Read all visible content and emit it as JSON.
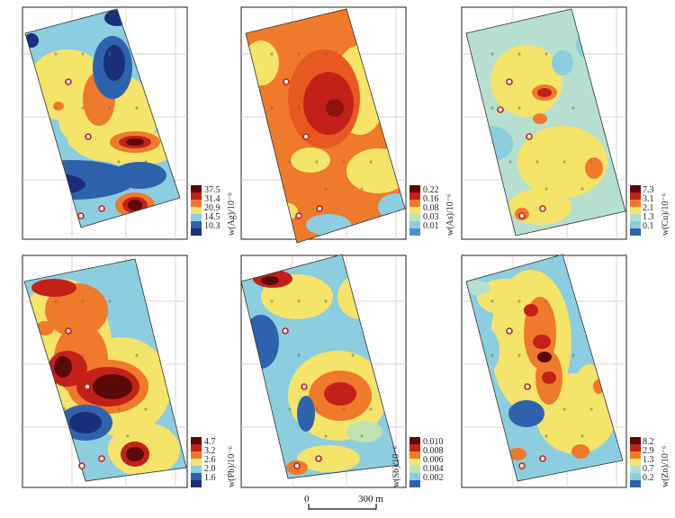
{
  "figure": {
    "panels": [
      {
        "id": "ag",
        "legend_title": "w(Ag)/10⁻⁹",
        "levels": [
          "37.5",
          "31.4",
          "20.9",
          "14.5",
          "10.3"
        ],
        "colors": [
          "#5b0a0a",
          "#c4201a",
          "#ef7a2b",
          "#f4e46a",
          "#8ccde0",
          "#2f62ad",
          "#1a2f7a"
        ]
      },
      {
        "id": "as",
        "legend_title": "w(As)/10⁻⁶",
        "levels": [
          "0.22",
          "0.16",
          "0.08",
          "0.03",
          "0.01"
        ],
        "colors": [
          "#5b0a0a",
          "#c4201a",
          "#ef7a2b",
          "#f4e46a",
          "#bfe3b0",
          "#8ccde0",
          "#4b8ed0"
        ]
      },
      {
        "id": "cu",
        "legend_title": "w(Cu)/10⁻⁶",
        "levels": [
          "7.3",
          "3.1",
          "2.1",
          "1.3",
          "0.1"
        ],
        "colors": [
          "#5b0a0a",
          "#c4201a",
          "#ef7a2b",
          "#f4e46a",
          "#b7dfcf",
          "#8ccde0",
          "#2f62ad"
        ]
      },
      {
        "id": "pb",
        "legend_title": "w(Pb)/10⁻⁶",
        "levels": [
          "4.7",
          "3.2",
          "2.6",
          "2.0",
          "1.6"
        ],
        "colors": [
          "#5b0a0a",
          "#c4201a",
          "#ef7a2b",
          "#f4e46a",
          "#8ccde0",
          "#2f62ad",
          "#1a2f7a"
        ]
      },
      {
        "id": "sb",
        "legend_title": "w(Sb)/10⁻⁶",
        "levels": [
          "0.010",
          "0.008",
          "0.006",
          "0.004",
          "0.002"
        ],
        "colors": [
          "#5b0a0a",
          "#c4201a",
          "#ef7a2b",
          "#f4e46a",
          "#bfe3b0",
          "#8ccde0",
          "#2f62ad"
        ]
      },
      {
        "id": "zn",
        "legend_title": "w(Zn)/10⁻⁶",
        "levels": [
          "8.2",
          "2.9",
          "1.3",
          "0.7",
          "0.2"
        ],
        "colors": [
          "#5b0a0a",
          "#c4201a",
          "#ef7a2b",
          "#f4e46a",
          "#b7dfcf",
          "#8ccde0",
          "#2f62ad"
        ]
      }
    ],
    "scale_bar": {
      "start_label": "0",
      "end_label": "300 m"
    }
  }
}
